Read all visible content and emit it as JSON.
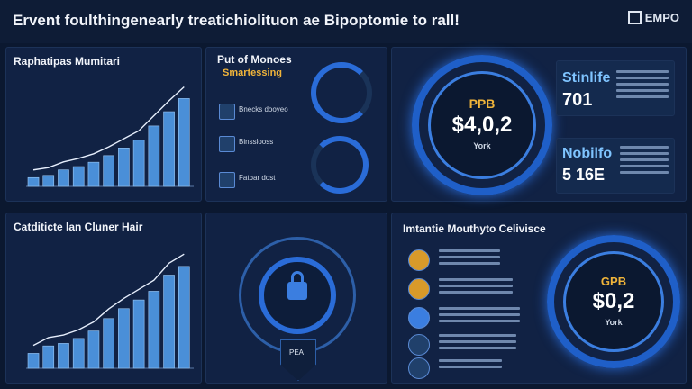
{
  "header": {
    "title": "Ervent foulthingenearly treatichiolituon ae Bipoptomie to rall!",
    "logo": "EMPO"
  },
  "p1": {
    "title": "Raphatipas Mumitari"
  },
  "p2": {
    "title": "Put of Monoes",
    "subtitle": "Smartessing",
    "items": [
      "Bnecks dooyeo",
      "Binsslooss",
      "Fatbar dost"
    ]
  },
  "p3": {
    "ring_label": "PPB",
    "value": "$4,0,2",
    "sub": "York",
    "box1_title": "Stinlife",
    "box1_value": "701",
    "box2_title": "Nobilfo",
    "box2_value": "5 16E"
  },
  "p4": {
    "title": "Catditicte lan Cluner Hair"
  },
  "p5": {
    "bottom_label": "PEA"
  },
  "p6": {
    "title": "Imtantie Mouthyto Celivisce",
    "ring_label": "GPB",
    "value": "$0,2",
    "sub": "York"
  },
  "chart1": {
    "type": "bar",
    "values": [
      8,
      10,
      15,
      18,
      22,
      28,
      35,
      42,
      55,
      68,
      80
    ]
  },
  "chart2": {
    "type": "bar",
    "values": [
      12,
      18,
      20,
      24,
      30,
      40,
      48,
      55,
      62,
      75,
      82
    ]
  }
}
